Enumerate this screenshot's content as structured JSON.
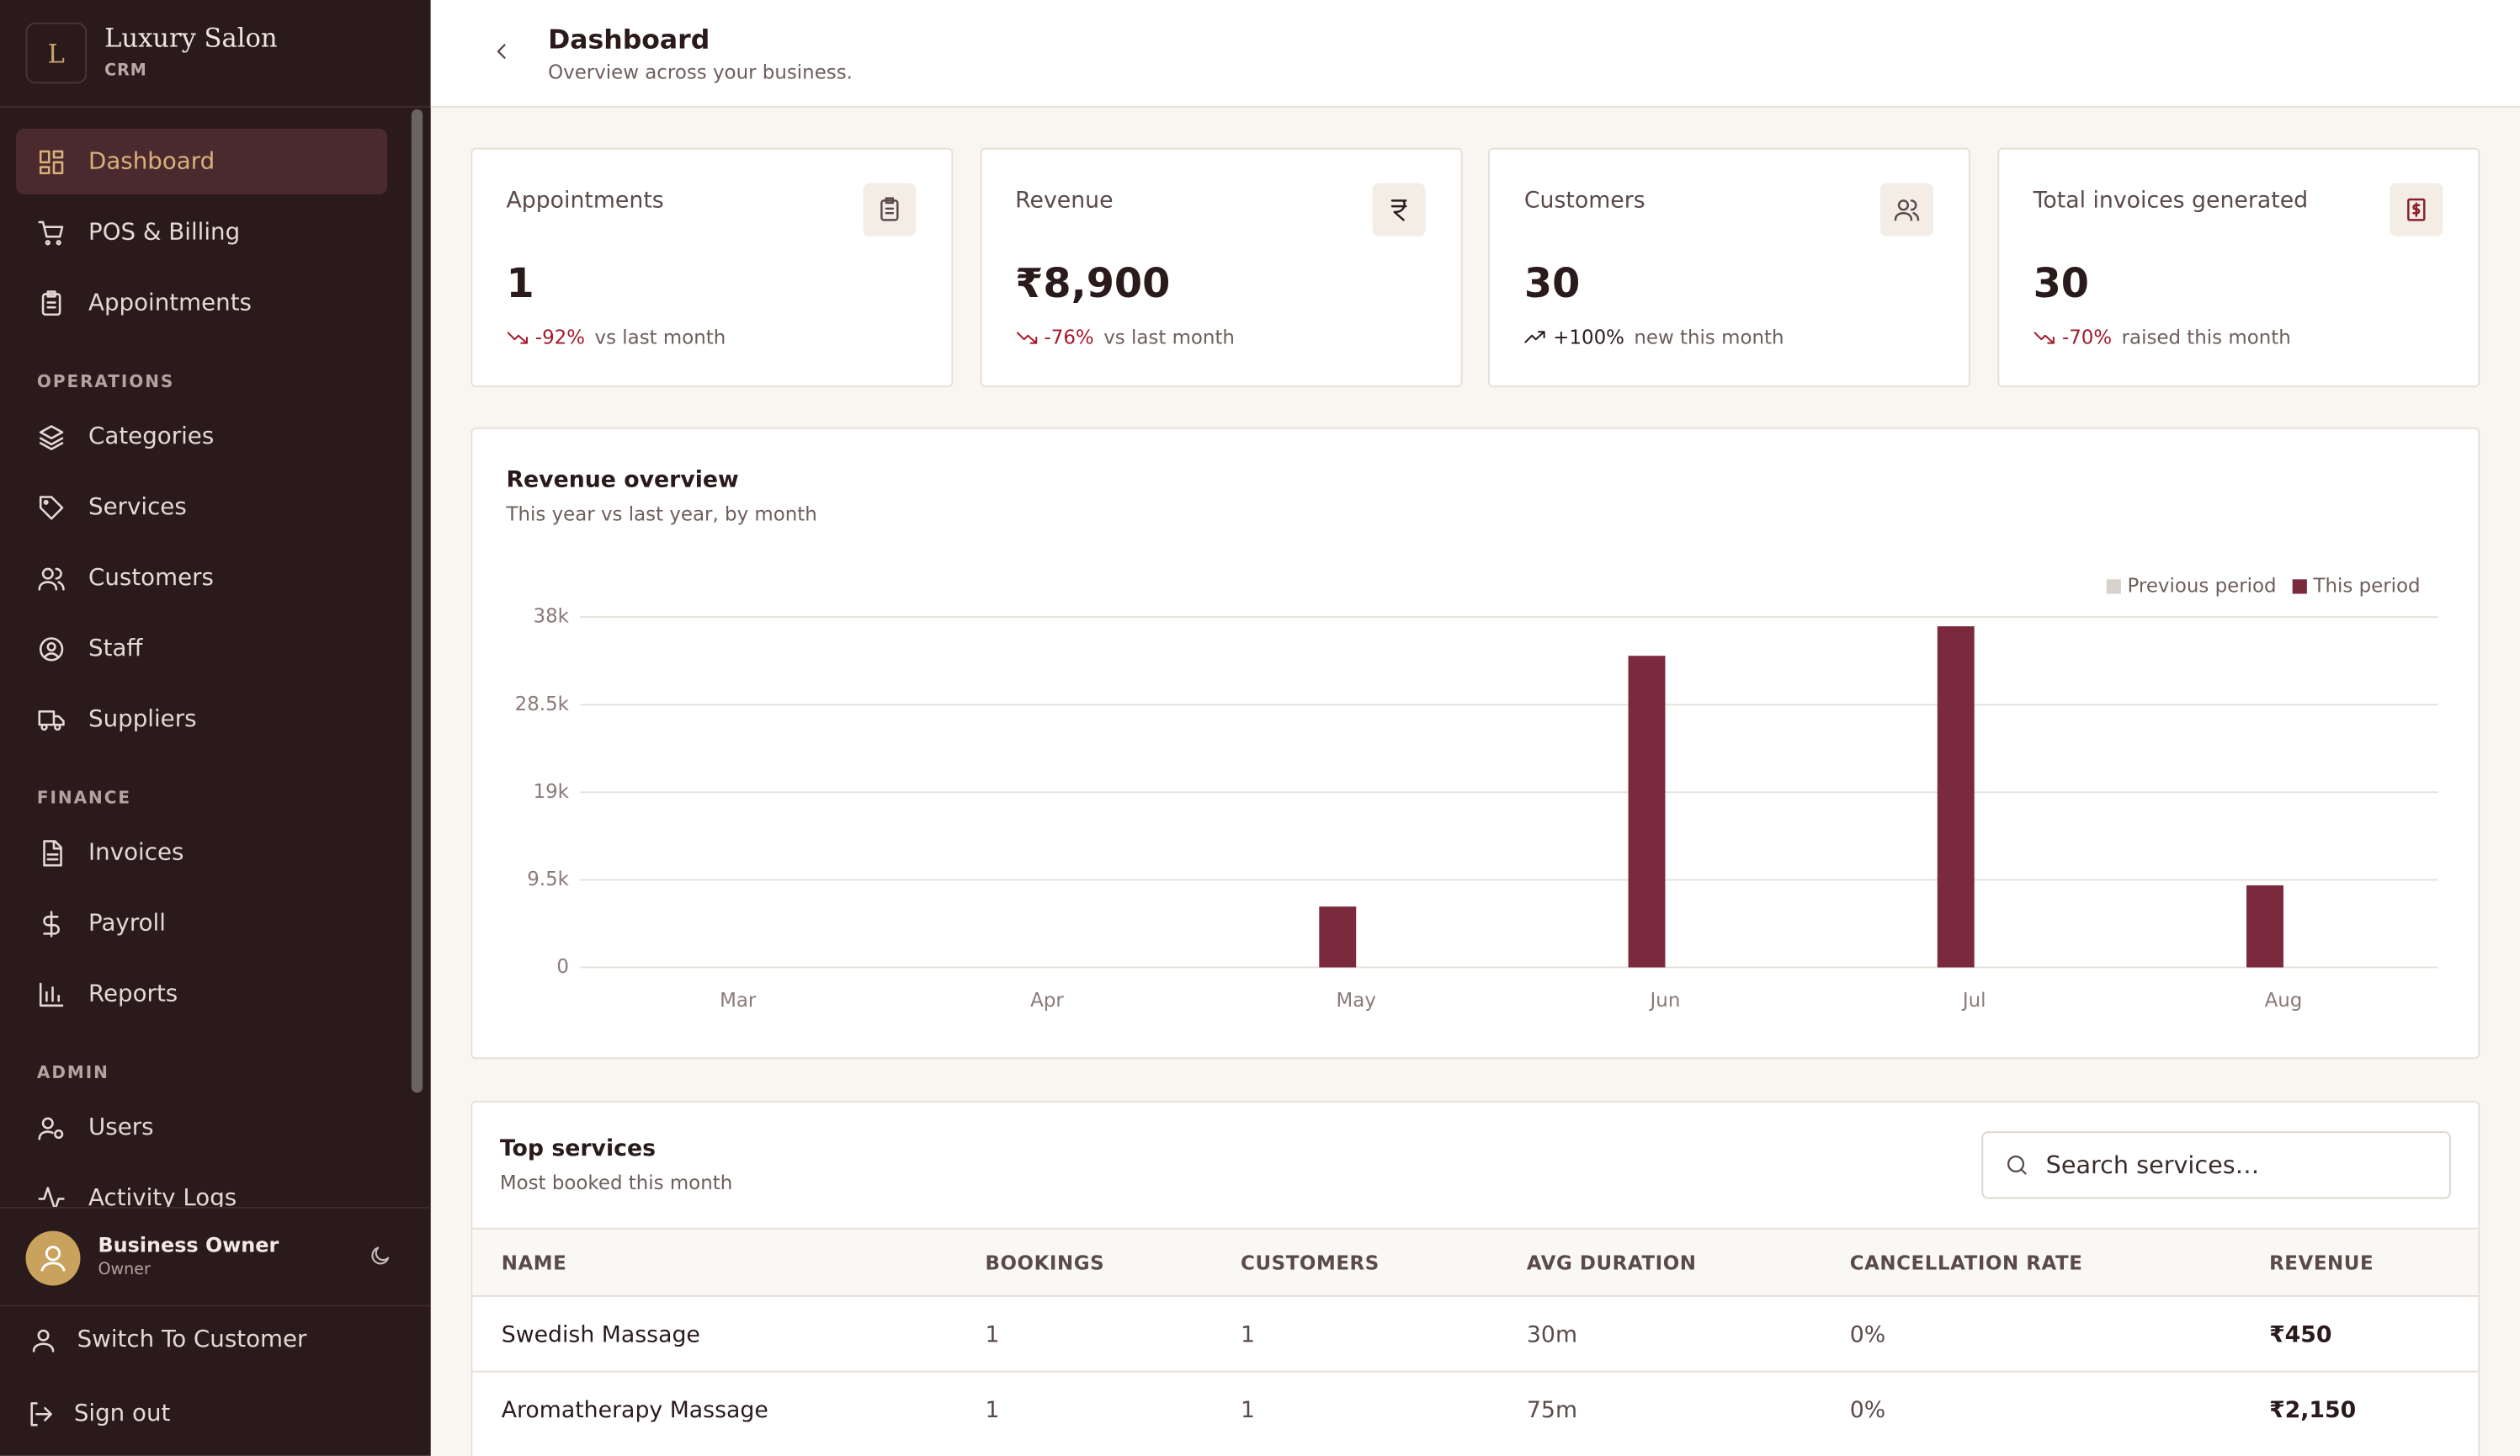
{
  "brand": {
    "logo": "L",
    "name": "Luxury Salon",
    "sub": "CRM"
  },
  "nav": {
    "main": [
      "Dashboard",
      "POS & Billing",
      "Appointments"
    ],
    "sections": [
      {
        "title": "OPERATIONS",
        "items": [
          "Categories",
          "Services",
          "Customers",
          "Staff",
          "Suppliers"
        ]
      },
      {
        "title": "FINANCE",
        "items": [
          "Invoices",
          "Payroll",
          "Reports"
        ]
      },
      {
        "title": "ADMIN",
        "items": [
          "Users",
          "Activity Logs"
        ]
      }
    ]
  },
  "user": {
    "name": "Business Owner",
    "role": "Owner"
  },
  "footer": [
    "Switch To Customer",
    "Sign out"
  ],
  "header": {
    "title": "Dashboard",
    "subtitle": "Overview across your business."
  },
  "kpis": [
    {
      "label": "Appointments",
      "value": "1",
      "change": "-92%",
      "note": "vs last month"
    },
    {
      "label": "Revenue",
      "value": "₹8,900",
      "change": "-76%",
      "note": "vs last month"
    },
    {
      "label": "Customers",
      "value": "30",
      "change": "+100%",
      "note": "new this month"
    },
    {
      "label": "Total invoices generated",
      "value": "30",
      "change": "-70%",
      "note": "raised this month"
    }
  ],
  "chart_data": {
    "type": "bar",
    "title": "Revenue overview",
    "subtitle": "This year vs last year, by month",
    "categories": [
      "Mar",
      "Apr",
      "May",
      "Jun",
      "Jul",
      "Aug"
    ],
    "series": [
      {
        "name": "Previous period",
        "color": "#d9d2cc",
        "values": [
          0,
          0,
          0,
          0,
          0,
          0
        ]
      },
      {
        "name": "This period",
        "color": "#7b2a3e",
        "values": [
          0,
          0,
          6600,
          33800,
          37000,
          8900
        ]
      }
    ],
    "ylim": [
      0,
      38000
    ],
    "yticks": [
      0,
      {
        "value": 9500,
        "label": "9.5k"
      },
      {
        "value": 19000,
        "label": "19k"
      },
      {
        "value": 28500,
        "label": "28.5k"
      },
      {
        "value": 38000,
        "label": "38k"
      }
    ],
    "grid": true,
    "legend": "top-right"
  },
  "table": {
    "title": "Top services",
    "subtitle": "Most booked this month",
    "search": "Search services…",
    "columns": [
      "NAME",
      "BOOKINGS",
      "CUSTOMERS",
      "AVG DURATION",
      "CANCELLATION RATE",
      "REVENUE"
    ],
    "rows": [
      [
        "Swedish Massage",
        "1",
        "1",
        "30m",
        "0%",
        "₹450"
      ],
      [
        "Aromatherapy Massage",
        "1",
        "1",
        "75m",
        "0%",
        "₹2,150"
      ]
    ]
  }
}
